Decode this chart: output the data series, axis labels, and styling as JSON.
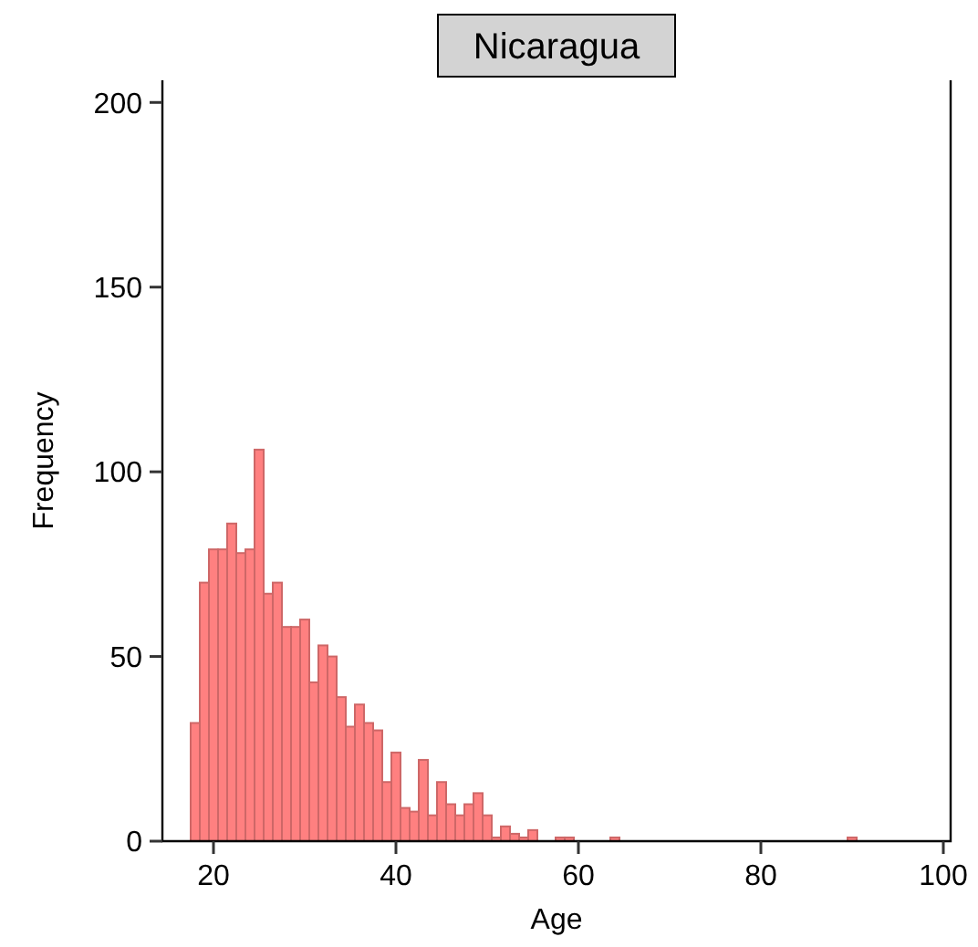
{
  "chart_data": {
    "type": "histogram",
    "title": "Nicaragua",
    "xlabel": "Age",
    "ylabel": "Frequency",
    "bins": [
      17.5,
      18.5,
      19.5,
      20.5,
      21.5,
      22.5,
      23.5,
      24.5,
      25.5,
      26.5,
      27.5,
      28.5,
      29.5,
      30.5,
      31.5,
      32.5,
      33.5,
      34.5,
      35.5,
      36.5,
      37.5,
      38.5,
      39.5,
      40.5,
      41.5,
      42.5,
      43.5,
      44.5,
      45.5,
      46.5,
      47.5,
      48.5,
      49.5,
      50.5,
      51.5,
      52.5,
      53.5,
      54.5,
      55.5,
      56.5,
      57.5,
      58.5,
      59.5,
      60.5,
      61.5,
      62.5,
      63.5,
      64.5,
      65.5,
      66.5,
      67.5,
      68.5,
      69.5,
      70.5,
      71.5,
      72.5,
      73.5,
      74.5,
      75.5,
      76.5,
      77.5,
      78.5,
      79.5,
      80.5,
      81.5,
      82.5,
      83.5,
      84.5,
      85.5,
      86.5,
      87.5,
      88.5,
      89.5,
      90.5
    ],
    "values": [
      32,
      70,
      79,
      79,
      86,
      78,
      79,
      106,
      67,
      70,
      58,
      58,
      60,
      43,
      53,
      50,
      39,
      31,
      37,
      32,
      30,
      16,
      24,
      9,
      8,
      22,
      7,
      16,
      10,
      7,
      10,
      13,
      7,
      1,
      4,
      2,
      1,
      3,
      0,
      0,
      1,
      1,
      0,
      0,
      0,
      0,
      1,
      0,
      0,
      0,
      0,
      0,
      0,
      0,
      0,
      0,
      0,
      0,
      0,
      0,
      0,
      0,
      0,
      0,
      0,
      0,
      0,
      0,
      0,
      0,
      0,
      0,
      1
    ],
    "color": "#ff8080",
    "xlim": [
      14.4,
      100.8
    ],
    "ylim": [
      0,
      206
    ],
    "xticks": [
      20,
      40,
      60,
      80,
      100
    ],
    "yticks": [
      0,
      50,
      100,
      150,
      200
    ],
    "grid": false
  }
}
